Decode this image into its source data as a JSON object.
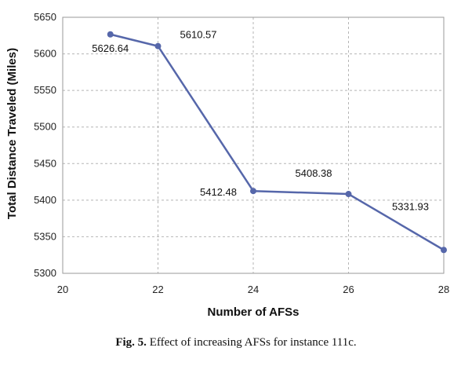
{
  "chart_data": {
    "type": "line",
    "title": "",
    "xlabel": "Number of AFSs",
    "ylabel": "Total Distance Traveled (Miles)",
    "xlim": [
      20,
      28
    ],
    "ylim": [
      5300,
      5650
    ],
    "xticks": [
      20,
      22,
      24,
      26,
      28
    ],
    "yticks": [
      5300,
      5350,
      5400,
      5450,
      5500,
      5550,
      5600,
      5650
    ],
    "grid": true,
    "series": [
      {
        "name": "Total Distance",
        "color": "#5667aa",
        "x": [
          21,
          22,
          24,
          26,
          28
        ],
        "y": [
          5626.64,
          5610.57,
          5412.48,
          5408.38,
          5331.93
        ],
        "labels": [
          "5626.64",
          "5610.57",
          "5412.48",
          "5408.38",
          "5331.93"
        ]
      }
    ]
  },
  "caption": {
    "label": "Fig. 5.",
    "text": "Effect of increasing AFSs for instance 111c."
  }
}
